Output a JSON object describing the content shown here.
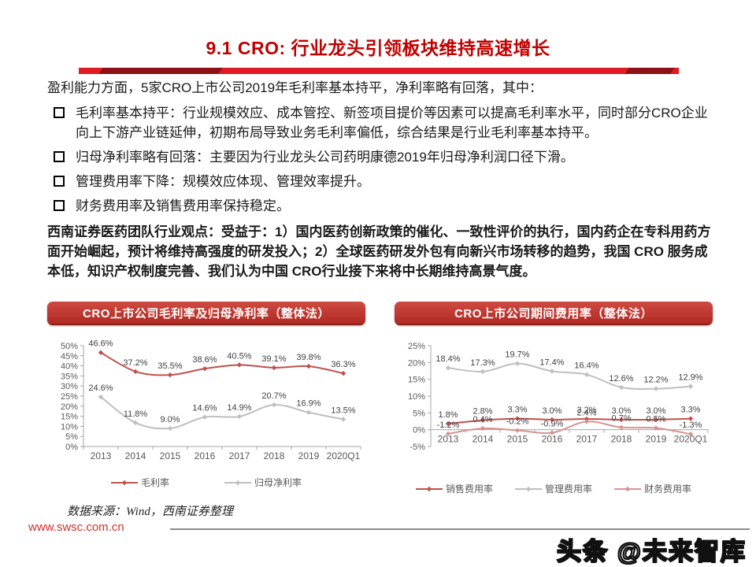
{
  "title": "9.1 CRO: 行业龙头引领板块维持高速增长",
  "intro": "盈利能力方面，5家CRO上市公司2019年毛利率基本持平，净利率略有回落，其中：",
  "bullets": [
    "毛利率基本持平：行业规模效应、成本管控、新签项目提价等因素可以提高毛利率水平，同时部分CRO企业向上下游产业链延伸，初期布局导致业务毛利率偏低，综合结果是行业毛利率基本持平。",
    "归母净利率略有回落：主要因为行业龙头公司药明康德2019年归母净利润口径下滑。",
    "管理费用率下降：规模效应体现、管理效率提升。",
    "财务费用率及销售费用率保持稳定。"
  ],
  "viewpoint": "西南证券医药团队行业观点：受益于：1）国内医药创新政策的催化、一致性评价的执行，国内药企在专科用药方面开始崛起，预计将维持高强度的研发投入；2）全球医药研发外包有向新兴市场转移的趋势，我国 CRO 服务成本低，知识产权制度完善、我们认为中国 CRO行业接下来将中长期维持高景气度。",
  "footer": {
    "source_note": "数据来源：Wind，西南证券整理",
    "website": "www.swsc.com.cn",
    "watermark": "头条 @未来智库"
  },
  "colors": {
    "title_red": "#c00000",
    "bar_red": "#e01b22",
    "bar_dark_red": "#8e1118",
    "header_bar_red": "#b02a23",
    "series_red": "#c0504d",
    "series_gray": "#bfbfbf",
    "series_rose": "#d59491",
    "axis_gray": "#a6a6a6",
    "label_gray": "#404040"
  },
  "chart_data": [
    {
      "type": "line",
      "title": "CRO上市公司毛利率及归母净利率（整体法）",
      "categories": [
        "2013",
        "2014",
        "2015",
        "2016",
        "2017",
        "2018",
        "2019",
        "2020Q1"
      ],
      "series": [
        {
          "name": "毛利率",
          "color": "#c0504d",
          "values": [
            46.6,
            37.2,
            35.5,
            38.6,
            40.5,
            39.1,
            39.8,
            36.3
          ]
        },
        {
          "name": "归母净利率",
          "color": "#bfbfbf",
          "values": [
            24.6,
            11.8,
            9.0,
            14.6,
            14.9,
            20.7,
            16.9,
            13.5
          ]
        }
      ],
      "ylim": [
        0,
        50
      ],
      "ytick_step": 5,
      "unit": "%",
      "grid": false,
      "legend_position": "bottom",
      "data_labels": true
    },
    {
      "type": "line",
      "title": "CRO上市公司期间费用率（整体法）",
      "categories": [
        "2013",
        "2014",
        "2015",
        "2016",
        "2017",
        "2018",
        "2019",
        "2020Q1"
      ],
      "series": [
        {
          "name": "销售费用率",
          "color": "#c0504d",
          "values": [
            1.8,
            2.8,
            3.3,
            3.0,
            3.2,
            3.0,
            3.0,
            3.3
          ]
        },
        {
          "name": "管理费用率",
          "color": "#bfbfbf",
          "values": [
            18.4,
            17.3,
            19.7,
            17.4,
            16.4,
            12.6,
            12.2,
            12.9
          ]
        },
        {
          "name": "财务费用率",
          "color": "#d59491",
          "values": [
            -1.2,
            0.4,
            -0.2,
            -0.9,
            2.4,
            0.7,
            0.5,
            -1.3
          ]
        }
      ],
      "ylim": [
        -5,
        25
      ],
      "ytick_step": 5,
      "unit": "%",
      "grid": false,
      "legend_position": "bottom",
      "data_labels": true
    }
  ]
}
